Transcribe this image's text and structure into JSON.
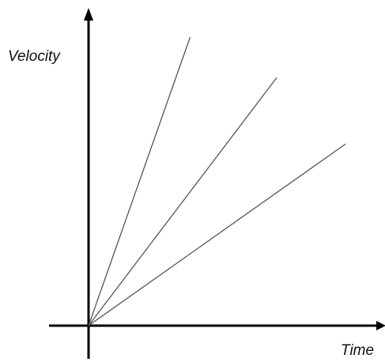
{
  "chart_data": {
    "type": "line",
    "title": "",
    "xlabel": "Time",
    "ylabel": "Velocity",
    "xlim": [
      0,
      1
    ],
    "ylim": [
      0,
      1
    ],
    "grid": false,
    "series": [
      {
        "x": [
          0,
          0.34
        ],
        "y": [
          0,
          1.0
        ]
      },
      {
        "x": [
          0,
          0.63
        ],
        "y": [
          0,
          0.86
        ]
      },
      {
        "x": [
          0,
          0.86
        ],
        "y": [
          0,
          0.63
        ]
      }
    ],
    "colors": {
      "axis": "#000000",
      "series": "#555555"
    }
  }
}
